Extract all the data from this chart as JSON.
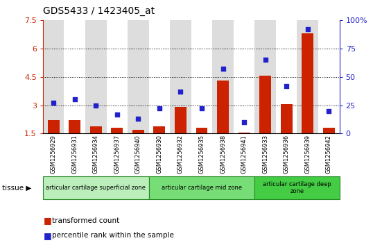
{
  "title": "GDS5433 / 1423405_at",
  "samples": [
    "GSM1256929",
    "GSM1256931",
    "GSM1256934",
    "GSM1256937",
    "GSM1256940",
    "GSM1256930",
    "GSM1256932",
    "GSM1256935",
    "GSM1256938",
    "GSM1256941",
    "GSM1256933",
    "GSM1256936",
    "GSM1256939",
    "GSM1256942"
  ],
  "transformed_count": [
    2.2,
    2.2,
    1.9,
    1.8,
    1.7,
    1.9,
    2.9,
    1.8,
    4.3,
    1.55,
    4.55,
    3.05,
    6.8,
    1.8
  ],
  "percentile_rank": [
    27,
    30,
    25,
    17,
    13,
    22,
    37,
    22,
    57,
    10,
    65,
    42,
    92,
    20
  ],
  "bar_color": "#cc2200",
  "dot_color": "#2222cc",
  "ylim_left": [
    1.5,
    7.5
  ],
  "ylim_right": [
    0,
    100
  ],
  "yticks_left": [
    1.5,
    3.0,
    4.5,
    6.0,
    7.5
  ],
  "yticks_right": [
    0,
    25,
    50,
    75,
    100
  ],
  "ytick_labels_left": [
    "1.5",
    "3",
    "4.5",
    "6",
    "7.5"
  ],
  "ytick_labels_right": [
    "0",
    "25",
    "50",
    "75",
    "100%"
  ],
  "hlines": [
    3.0,
    4.5,
    6.0
  ],
  "groups": [
    {
      "label": "articular cartilage superficial zone",
      "start": 0,
      "end": 5,
      "color": "#bbeebb"
    },
    {
      "label": "articular cartilage mid zone",
      "start": 5,
      "end": 10,
      "color": "#77dd77"
    },
    {
      "label": "articular cartilage deep\nzone",
      "start": 10,
      "end": 14,
      "color": "#44cc44"
    }
  ],
  "tissue_label": "tissue",
  "legend_bar_label": "transformed count",
  "legend_dot_label": "percentile rank within the sample",
  "col_bg_odd": "#dddddd",
  "col_bg_even": "#ffffff",
  "plot_bg": "#ffffff"
}
